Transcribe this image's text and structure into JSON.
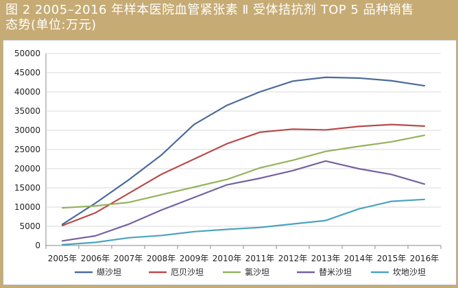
{
  "title": {
    "line1": "图 2   2005–2016 年样本医院血管紧张素 Ⅱ 受体拮抗剂 TOP  5 品种销售",
    "line2": "态势(单位:万元)"
  },
  "chart_data": {
    "type": "line",
    "title": "图 2 2005–2016 年样本医院血管紧张素 Ⅱ 受体拮抗剂 TOP 5 品种销售态势(单位:万元)",
    "xlabel": "",
    "ylabel": "",
    "categories": [
      "2005年",
      "2006年",
      "2007年",
      "2008年",
      "2009年",
      "2010年",
      "2011年",
      "2012年",
      "2013年",
      "2014年",
      "2015年",
      "2016年"
    ],
    "ylim": [
      0,
      50000
    ],
    "yticks": [
      "0",
      "5000",
      "10000",
      "15000",
      "20000",
      "25000",
      "30000",
      "35000",
      "40000",
      "45000",
      "50000"
    ],
    "grid": true,
    "legend": "bottom",
    "series": [
      {
        "name": "缬沙坦",
        "color": "#4a6a9b",
        "values": [
          5500,
          11000,
          17000,
          23500,
          31500,
          36500,
          40000,
          42800,
          43800,
          43600,
          42900,
          41600
        ]
      },
      {
        "name": "厄贝沙坦",
        "color": "#b94a48",
        "values": [
          5200,
          8500,
          13500,
          18500,
          22500,
          26500,
          29500,
          30300,
          30100,
          31000,
          31500,
          31100
        ]
      },
      {
        "name": "氯沙坦",
        "color": "#94b25c",
        "values": [
          9800,
          10300,
          11200,
          13200,
          15200,
          17200,
          20200,
          22200,
          24500,
          25800,
          27000,
          28700
        ]
      },
      {
        "name": "替米沙坦",
        "color": "#7560a0",
        "values": [
          1200,
          2500,
          5500,
          9200,
          12500,
          15800,
          17500,
          19500,
          22000,
          20000,
          18500,
          16000
        ]
      },
      {
        "name": "坎地沙坦",
        "color": "#4aa3bd",
        "values": [
          200,
          800,
          2000,
          2600,
          3600,
          4200,
          4700,
          5600,
          6500,
          9500,
          11500,
          12000
        ]
      }
    ]
  }
}
